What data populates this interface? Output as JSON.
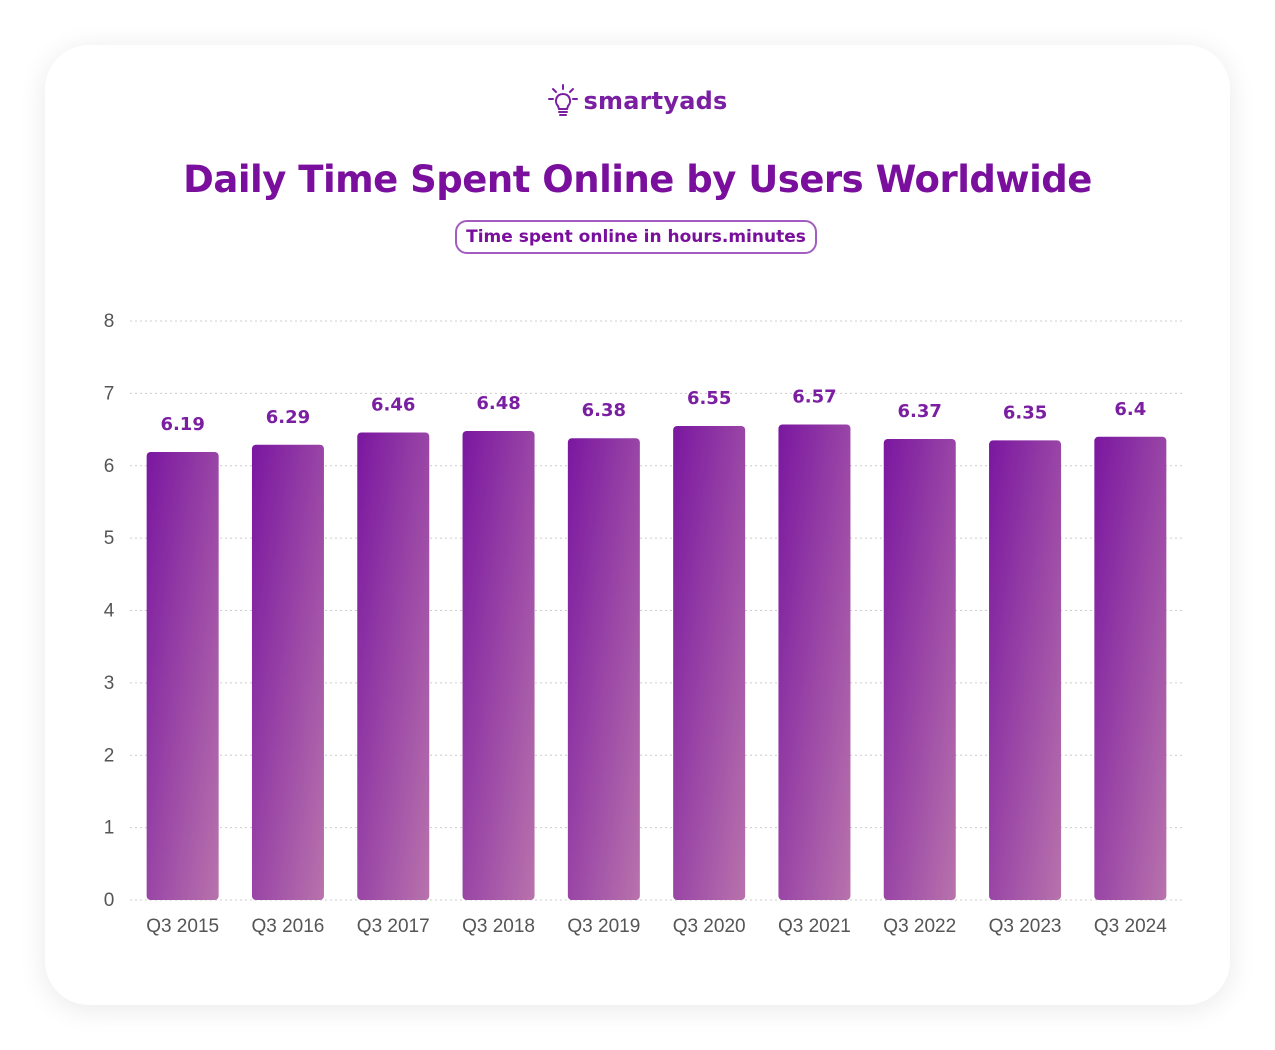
{
  "logo": {
    "text": "smartyads",
    "icon": "lightbulb-icon"
  },
  "colors": {
    "title": "#790f9c",
    "bar_top": "#7a17a0",
    "bar_bottom": "#b873ac",
    "grid": "#cccccc"
  },
  "chart_data": {
    "type": "bar",
    "title": "Daily Time Spent Online by Users Worldwide",
    "subtitle": "Time spent online in hours.minutes",
    "categories": [
      "Q3 2015",
      "Q3 2016",
      "Q3 2017",
      "Q3 2018",
      "Q3 2019",
      "Q3 2020",
      "Q3 2021",
      "Q3 2022",
      "Q3 2023",
      "Q3 2024"
    ],
    "values": [
      6.19,
      6.29,
      6.46,
      6.48,
      6.38,
      6.55,
      6.57,
      6.37,
      6.35,
      6.4
    ],
    "value_labels": [
      "6.19",
      "6.29",
      "6.46",
      "6.48",
      "6.38",
      "6.55",
      "6.57",
      "6.37",
      "6.35",
      "6.4"
    ],
    "xlabel": "",
    "ylabel": "",
    "ylim": [
      0,
      8
    ],
    "yticks": [
      "0",
      "1",
      "2",
      "3",
      "4",
      "5",
      "6",
      "7",
      "8"
    ],
    "grid": true,
    "grid_style": "dotted"
  }
}
